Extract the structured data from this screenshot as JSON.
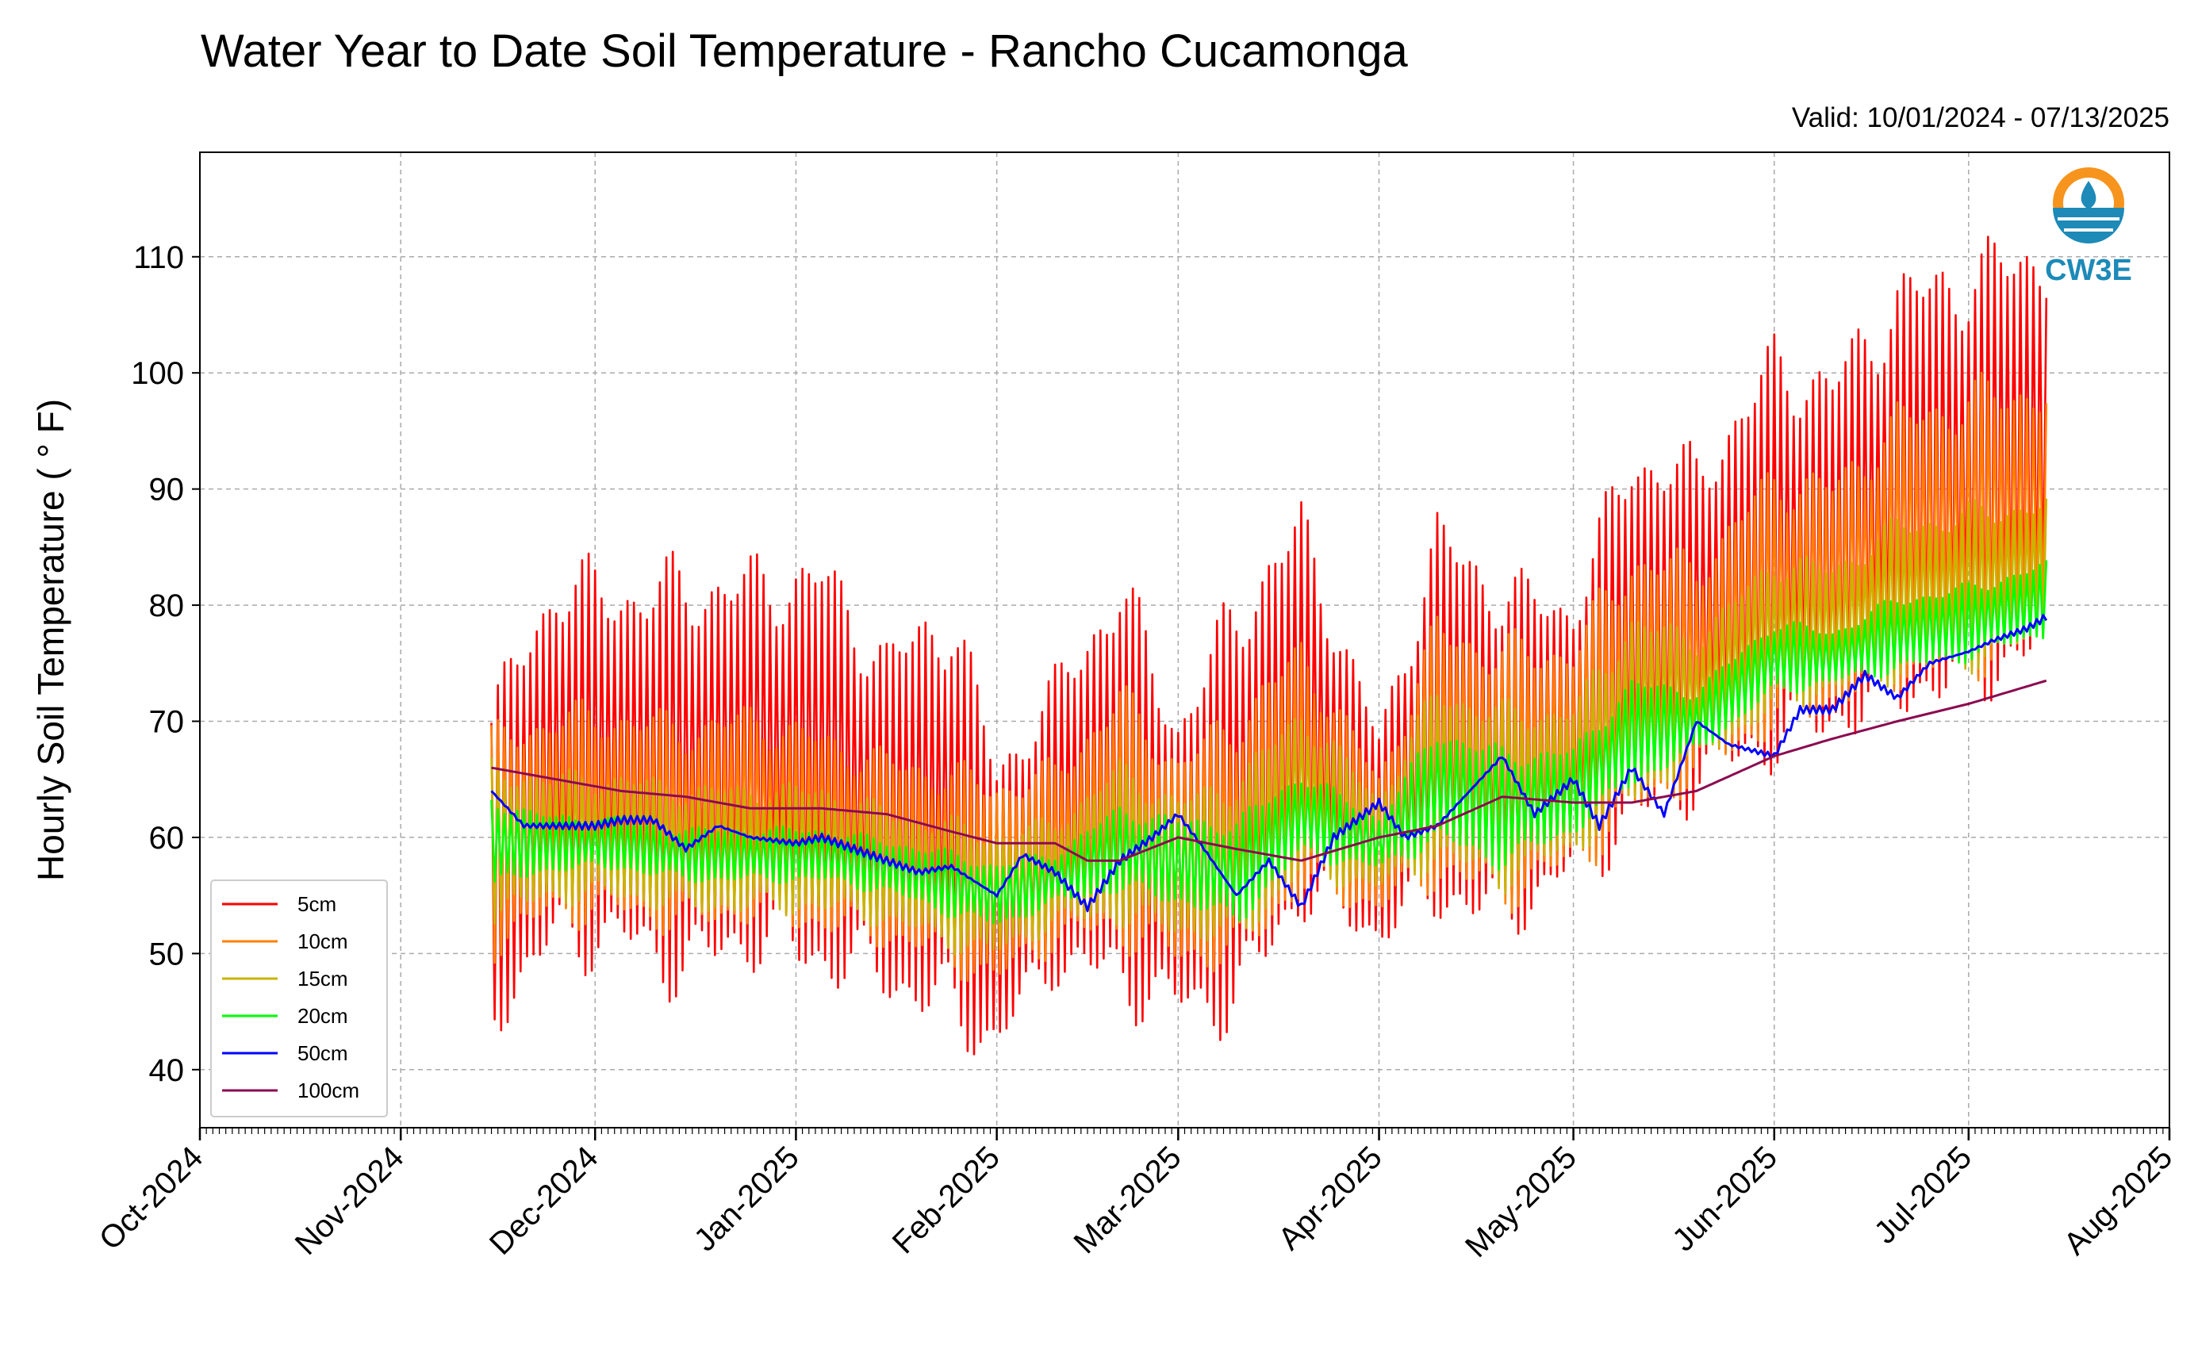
{
  "chart_data": {
    "type": "line",
    "title": "Water Year to Date Soil Temperature - Rancho Cucamonga",
    "subtitle": "Valid: 10/01/2024 - 07/13/2025",
    "xlabel": "",
    "ylabel": "Hourly Soil Temperature ( ° F)",
    "xlim": [
      "2024-10-01",
      "2025-08-01"
    ],
    "ylim": [
      35,
      119
    ],
    "x_ticks": [
      "Oct-2024",
      "Nov-2024",
      "Dec-2024",
      "Jan-2025",
      "Feb-2025",
      "Mar-2025",
      "Apr-2025",
      "May-2025",
      "Jun-2025",
      "Jul-2025",
      "Aug-2025"
    ],
    "y_ticks": [
      40,
      50,
      60,
      70,
      80,
      90,
      100,
      110
    ],
    "grid": true,
    "legend_position": "lower-left",
    "logo_text": "CW3E",
    "series": [
      {
        "name": "5cm",
        "color": "#ff0000",
        "style": "band",
        "dates": [
          "2024-11-15",
          "2024-11-25",
          "2024-12-05",
          "2024-12-15",
          "2024-12-25",
          "2025-01-05",
          "2025-01-15",
          "2025-01-25",
          "2025-02-01",
          "2025-02-10",
          "2025-02-20",
          "2025-03-01",
          "2025-03-10",
          "2025-03-20",
          "2025-04-01",
          "2025-04-10",
          "2025-04-20",
          "2025-05-01",
          "2025-05-10",
          "2025-05-20",
          "2025-06-01",
          "2025-06-10",
          "2025-06-20",
          "2025-07-01",
          "2025-07-13"
        ],
        "high": [
          73,
          85,
          84,
          85,
          85,
          86,
          78,
          83,
          68,
          75,
          85,
          72,
          83,
          90,
          70,
          89,
          84,
          82,
          96,
          94,
          104,
          102,
          110,
          112,
          114
        ],
        "low": [
          42,
          48,
          48,
          45,
          48,
          46,
          45,
          41,
          40,
          47,
          44,
          43,
          42,
          52,
          50,
          52,
          50,
          55,
          58,
          62,
          65,
          67,
          69,
          70,
          73
        ]
      },
      {
        "name": "10cm",
        "color": "#ff8000",
        "style": "band",
        "dates": [
          "2024-11-15",
          "2024-11-25",
          "2024-12-05",
          "2024-12-15",
          "2024-12-25",
          "2025-01-05",
          "2025-01-15",
          "2025-01-25",
          "2025-02-01",
          "2025-02-10",
          "2025-02-20",
          "2025-03-01",
          "2025-03-10",
          "2025-03-20",
          "2025-04-01",
          "2025-04-10",
          "2025-04-20",
          "2025-05-01",
          "2025-05-10",
          "2025-05-20",
          "2025-06-01",
          "2025-06-10",
          "2025-06-20",
          "2025-07-01",
          "2025-07-13"
        ],
        "high": [
          70,
          72,
          72,
          71,
          72,
          70,
          68,
          67,
          66,
          67,
          74,
          68,
          72,
          78,
          66,
          80,
          78,
          78,
          86,
          85,
          93,
          92,
          98,
          100,
          101
        ],
        "low": [
          49,
          52,
          52,
          51,
          52,
          51,
          50,
          48,
          46,
          50,
          50,
          48,
          48,
          54,
          53,
          55,
          53,
          56,
          60,
          64,
          68,
          70,
          72,
          73,
          75
        ]
      },
      {
        "name": "15cm",
        "color": "#c8b400",
        "style": "band",
        "dates": [
          "2024-11-15",
          "2024-11-25",
          "2024-12-05",
          "2024-12-15",
          "2024-12-25",
          "2025-01-05",
          "2025-01-15",
          "2025-01-25",
          "2025-02-01",
          "2025-02-10",
          "2025-02-20",
          "2025-03-01",
          "2025-03-10",
          "2025-03-20",
          "2025-04-01",
          "2025-04-10",
          "2025-04-20",
          "2025-05-01",
          "2025-05-10",
          "2025-05-20",
          "2025-06-01",
          "2025-06-10",
          "2025-06-20",
          "2025-07-01",
          "2025-07-13"
        ],
        "high": [
          67,
          66,
          66,
          65,
          65,
          65,
          63,
          62,
          61,
          62,
          67,
          64,
          66,
          72,
          64,
          74,
          72,
          72,
          80,
          78,
          85,
          84,
          88,
          89,
          90
        ],
        "low": [
          52,
          54,
          54,
          53,
          53,
          53,
          52,
          50,
          49,
          52,
          52,
          51,
          50,
          56,
          55,
          57,
          55,
          58,
          62,
          66,
          70,
          72,
          73,
          74,
          76
        ]
      },
      {
        "name": "20cm",
        "color": "#00ff00",
        "style": "band",
        "dates": [
          "2024-11-15",
          "2024-11-25",
          "2024-12-05",
          "2024-12-15",
          "2024-12-25",
          "2025-01-05",
          "2025-01-15",
          "2025-01-25",
          "2025-02-01",
          "2025-02-10",
          "2025-02-20",
          "2025-03-01",
          "2025-03-10",
          "2025-03-20",
          "2025-04-01",
          "2025-04-10",
          "2025-04-20",
          "2025-05-01",
          "2025-05-10",
          "2025-05-20",
          "2025-06-01",
          "2025-06-10",
          "2025-06-20",
          "2025-07-01",
          "2025-07-13"
        ],
        "high": [
          64,
          62,
          62,
          61,
          61,
          61,
          60,
          59,
          58,
          59,
          63,
          62,
          62,
          66,
          62,
          70,
          68,
          68,
          74,
          73,
          79,
          78,
          81,
          82,
          84
        ],
        "low": [
          55,
          57,
          57,
          56,
          56,
          56,
          55,
          53,
          52,
          54,
          55,
          54,
          52,
          58,
          57,
          59,
          57,
          60,
          64,
          67,
          72,
          73,
          74,
          75,
          77
        ]
      },
      {
        "name": "50cm",
        "color": "#0000ff",
        "style": "line",
        "dates": [
          "2024-11-15",
          "2024-11-20",
          "2024-11-25",
          "2024-12-01",
          "2024-12-05",
          "2024-12-10",
          "2024-12-15",
          "2024-12-20",
          "2024-12-25",
          "2025-01-01",
          "2025-01-05",
          "2025-01-10",
          "2025-01-15",
          "2025-01-20",
          "2025-01-25",
          "2025-02-01",
          "2025-02-05",
          "2025-02-10",
          "2025-02-15",
          "2025-02-20",
          "2025-02-25",
          "2025-03-01",
          "2025-03-05",
          "2025-03-10",
          "2025-03-15",
          "2025-03-20",
          "2025-03-25",
          "2025-04-01",
          "2025-04-05",
          "2025-04-10",
          "2025-04-15",
          "2025-04-20",
          "2025-04-25",
          "2025-05-01",
          "2025-05-05",
          "2025-05-10",
          "2025-05-15",
          "2025-05-20",
          "2025-05-25",
          "2025-06-01",
          "2025-06-05",
          "2025-06-10",
          "2025-06-15",
          "2025-06-20",
          "2025-06-25",
          "2025-07-01",
          "2025-07-05",
          "2025-07-10",
          "2025-07-13"
        ],
        "values": [
          64,
          61,
          61,
          61,
          61.5,
          61.5,
          59,
          61,
          60,
          59.5,
          60,
          59,
          58,
          57,
          57.5,
          55,
          58.5,
          57,
          54,
          58,
          60,
          62,
          59,
          55,
          58,
          54,
          60,
          63,
          60,
          61,
          64,
          67,
          62,
          65,
          61,
          66,
          62,
          70,
          68,
          67,
          71,
          71,
          74,
          72,
          75,
          76,
          77,
          78,
          79
        ]
      },
      {
        "name": "100cm",
        "color": "#8b0a50",
        "style": "line",
        "dates": [
          "2024-11-15",
          "2024-11-25",
          "2024-12-05",
          "2024-12-15",
          "2024-12-25",
          "2025-01-05",
          "2025-01-15",
          "2025-01-25",
          "2025-02-01",
          "2025-02-10",
          "2025-02-15",
          "2025-02-20",
          "2025-03-01",
          "2025-03-10",
          "2025-03-15",
          "2025-03-20",
          "2025-04-01",
          "2025-04-10",
          "2025-04-20",
          "2025-05-01",
          "2025-05-10",
          "2025-05-20",
          "2025-06-01",
          "2025-06-10",
          "2025-06-20",
          "2025-07-01",
          "2025-07-13"
        ],
        "values": [
          66,
          65,
          64,
          63.5,
          62.5,
          62.5,
          62,
          60.5,
          59.5,
          59.5,
          58,
          58,
          60,
          59,
          58.5,
          58,
          60,
          61,
          63.5,
          63,
          63,
          64,
          67,
          68.5,
          70,
          71.5,
          73.5
        ]
      }
    ]
  }
}
